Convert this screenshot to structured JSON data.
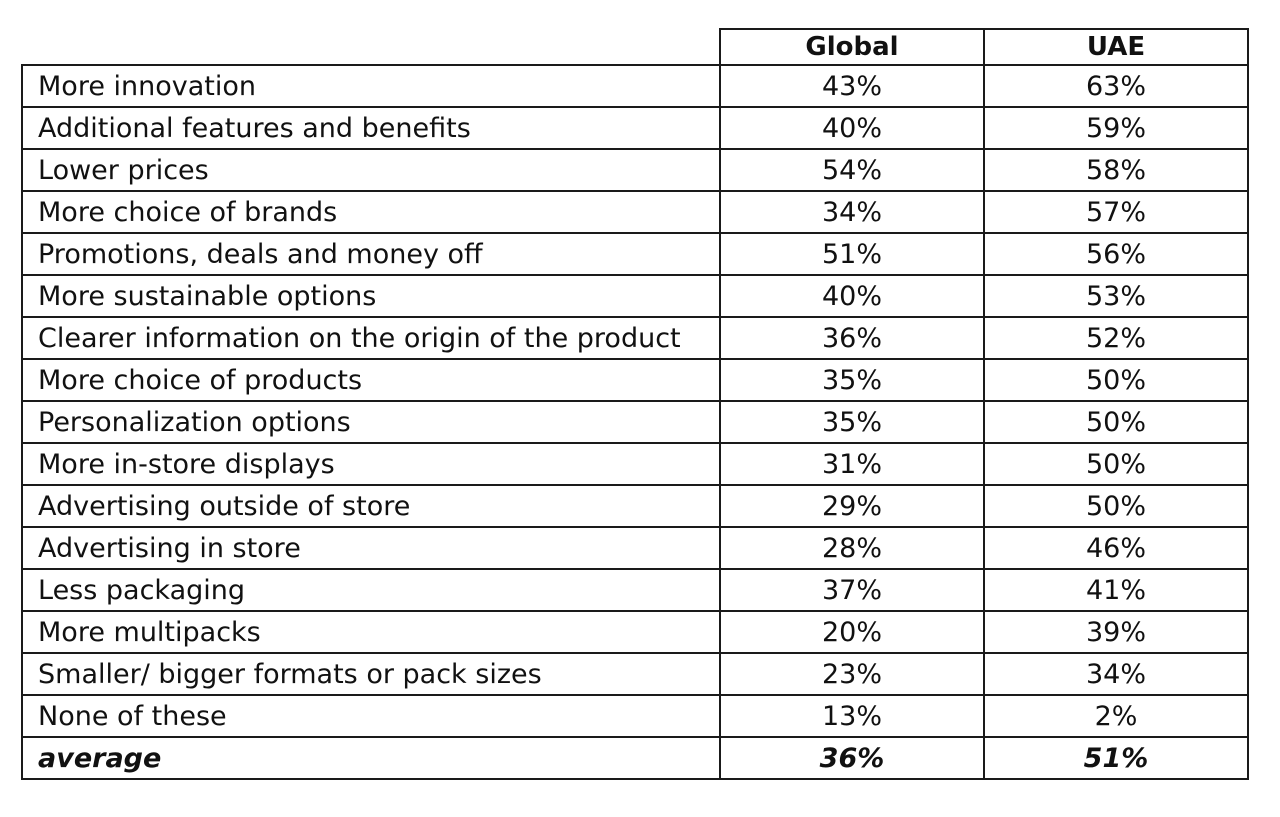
{
  "table": {
    "columns": [
      "Global",
      "UAE"
    ],
    "rows": [
      {
        "label": "More innovation",
        "global": "43%",
        "uae": "63%"
      },
      {
        "label": "Additional features and benefits",
        "global": "40%",
        "uae": "59%"
      },
      {
        "label": "Lower prices",
        "global": "54%",
        "uae": "58%"
      },
      {
        "label": "More choice of brands",
        "global": "34%",
        "uae": "57%"
      },
      {
        "label": "Promotions, deals and money off",
        "global": "51%",
        "uae": "56%"
      },
      {
        "label": "More sustainable options",
        "global": "40%",
        "uae": "53%"
      },
      {
        "label": "Clearer information on the origin of the product",
        "global": "36%",
        "uae": "52%"
      },
      {
        "label": "More choice of products",
        "global": "35%",
        "uae": "50%"
      },
      {
        "label": "Personalization options",
        "global": "35%",
        "uae": "50%"
      },
      {
        "label": "More in-store displays",
        "global": "31%",
        "uae": "50%"
      },
      {
        "label": "Advertising outside of store",
        "global": "29%",
        "uae": "50%"
      },
      {
        "label": "Advertising in store",
        "global": "28%",
        "uae": "46%"
      },
      {
        "label": "Less packaging",
        "global": "37%",
        "uae": "41%"
      },
      {
        "label": "More multipacks",
        "global": "20%",
        "uae": "39%"
      },
      {
        "label": "Smaller/ bigger formats or pack sizes",
        "global": "23%",
        "uae": "34%"
      },
      {
        "label": "None of these",
        "global": "13%",
        "uae": "2%"
      }
    ],
    "average": {
      "label": "average",
      "global": "36%",
      "uae": "51%"
    }
  }
}
